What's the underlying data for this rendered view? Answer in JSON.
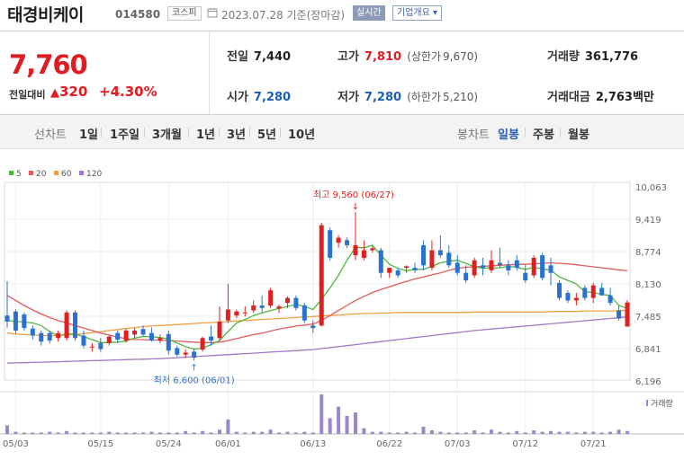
{
  "stock": {
    "name": "태경비케이",
    "code": "014580",
    "market": "코스피",
    "date": "2023.07.28 기준(장마감)",
    "realtime_label": "실시간",
    "overview_label": "기업개요",
    "price": "7,760",
    "change_label": "전일대비",
    "change": "320",
    "change_pct": "+4.30%"
  },
  "summary": {
    "prev_close": {
      "label": "전일",
      "value": "7,440"
    },
    "high": {
      "label": "고가",
      "value": "7,810",
      "limit_label": "(상한가",
      "limit_value": "9,670)"
    },
    "volume": {
      "label": "거래량",
      "value": "361,776"
    },
    "open": {
      "label": "시가",
      "value": "7,280"
    },
    "low": {
      "label": "저가",
      "value": "7,280",
      "limit_label": "(하한가",
      "limit_value": "5,210)"
    },
    "amount": {
      "label": "거래대금",
      "value": "2,763",
      "unit": "백만"
    }
  },
  "period_bar": {
    "line_label": "선차트",
    "line_periods": [
      "1일",
      "1주일",
      "3개월",
      "1년",
      "3년",
      "5년",
      "10년"
    ],
    "candle_label": "봉차트",
    "candle_periods": [
      "일봉",
      "주봉",
      "월봉"
    ],
    "candle_selected": "일봉"
  },
  "colors": {
    "up": "#e02020",
    "down": "#2a72d0",
    "ma5": "#4fb83c",
    "ma20": "#e55a5a",
    "ma60": "#f0a040",
    "ma120": "#a377c8",
    "volume": "#9a88c8"
  },
  "chart_data": {
    "type": "candlestick",
    "title": "",
    "ylim": [
      6196,
      10063
    ],
    "yticks": [
      "10,063",
      "9,419",
      "8,774",
      "8,130",
      "7,485",
      "6,841",
      "6,196"
    ],
    "xticks": [
      "05/03",
      "05/15",
      "05/24",
      "06/01",
      "06/13",
      "06/22",
      "07/03",
      "07/12",
      "07/21"
    ],
    "legend": [
      {
        "name": "5",
        "color": "#4fb83c"
      },
      {
        "name": "20",
        "color": "#e55a5a"
      },
      {
        "name": "60",
        "color": "#f0a040"
      },
      {
        "name": "120",
        "color": "#a377c8"
      }
    ],
    "volume_label": "거래량",
    "high_annotation": "최고 9,560 (06/27)",
    "low_annotation": "최저 6,600 (06/01)",
    "candles": [
      {
        "o": 7500,
        "h": 8180,
        "l": 7260,
        "c": 7380
      },
      {
        "o": 7580,
        "h": 7620,
        "l": 7140,
        "c": 7200
      },
      {
        "o": 7520,
        "h": 7560,
        "l": 7200,
        "c": 7250
      },
      {
        "o": 7240,
        "h": 7300,
        "l": 7020,
        "c": 7100
      },
      {
        "o": 7150,
        "h": 7200,
        "l": 6900,
        "c": 6980
      },
      {
        "o": 7150,
        "h": 7200,
        "l": 6940,
        "c": 7000
      },
      {
        "o": 7050,
        "h": 7200,
        "l": 6980,
        "c": 7150
      },
      {
        "o": 7050,
        "h": 7600,
        "l": 7000,
        "c": 7560
      },
      {
        "o": 7560,
        "h": 7600,
        "l": 7000,
        "c": 7050
      },
      {
        "o": 7100,
        "h": 7200,
        "l": 6850,
        "c": 6900
      },
      {
        "o": 6880,
        "h": 6950,
        "l": 6780,
        "c": 6880
      },
      {
        "o": 6950,
        "h": 7050,
        "l": 6780,
        "c": 6830
      },
      {
        "o": 6950,
        "h": 7100,
        "l": 6900,
        "c": 7080
      },
      {
        "o": 7150,
        "h": 7200,
        "l": 6950,
        "c": 7020
      },
      {
        "o": 7000,
        "h": 7230,
        "l": 6960,
        "c": 7200
      },
      {
        "o": 7120,
        "h": 7250,
        "l": 7050,
        "c": 7200
      },
      {
        "o": 7230,
        "h": 7300,
        "l": 7080,
        "c": 7120
      },
      {
        "o": 7150,
        "h": 7260,
        "l": 6980,
        "c": 7000
      },
      {
        "o": 7000,
        "h": 7120,
        "l": 6950,
        "c": 7050
      },
      {
        "o": 7130,
        "h": 7200,
        "l": 6720,
        "c": 6800
      },
      {
        "o": 6850,
        "h": 6900,
        "l": 6680,
        "c": 6720
      },
      {
        "o": 6720,
        "h": 6820,
        "l": 6650,
        "c": 6760
      },
      {
        "o": 6780,
        "h": 6850,
        "l": 6600,
        "c": 6660
      },
      {
        "o": 6820,
        "h": 7080,
        "l": 6780,
        "c": 7050
      },
      {
        "o": 7080,
        "h": 7300,
        "l": 6900,
        "c": 7000
      },
      {
        "o": 7050,
        "h": 7680,
        "l": 7000,
        "c": 7380
      },
      {
        "o": 7400,
        "h": 8130,
        "l": 7350,
        "c": 7620
      },
      {
        "o": 7500,
        "h": 7620,
        "l": 7450,
        "c": 7580
      },
      {
        "o": 7550,
        "h": 7680,
        "l": 7480,
        "c": 7560
      },
      {
        "o": 7600,
        "h": 7800,
        "l": 7550,
        "c": 7700
      },
      {
        "o": 7700,
        "h": 7900,
        "l": 7560,
        "c": 7650
      },
      {
        "o": 7700,
        "h": 8050,
        "l": 7650,
        "c": 8000
      },
      {
        "o": 7640,
        "h": 7720,
        "l": 7550,
        "c": 7680
      },
      {
        "o": 7750,
        "h": 7880,
        "l": 7650,
        "c": 7850
      },
      {
        "o": 7850,
        "h": 7900,
        "l": 7600,
        "c": 7650
      },
      {
        "o": 7700,
        "h": 7750,
        "l": 7350,
        "c": 7400
      },
      {
        "o": 7300,
        "h": 7400,
        "l": 7150,
        "c": 7250
      },
      {
        "o": 7300,
        "h": 9350,
        "l": 7280,
        "c": 9300
      },
      {
        "o": 9200,
        "h": 9250,
        "l": 8600,
        "c": 8650
      },
      {
        "o": 8950,
        "h": 9100,
        "l": 8850,
        "c": 9050
      },
      {
        "o": 9000,
        "h": 9050,
        "l": 8850,
        "c": 8900
      },
      {
        "o": 8700,
        "h": 9560,
        "l": 8600,
        "c": 8900
      },
      {
        "o": 8650,
        "h": 9000,
        "l": 8600,
        "c": 8800
      },
      {
        "o": 8800,
        "h": 8880,
        "l": 8750,
        "c": 8840
      },
      {
        "o": 8800,
        "h": 8850,
        "l": 8250,
        "c": 8350
      },
      {
        "o": 8350,
        "h": 8450,
        "l": 8250,
        "c": 8450
      },
      {
        "o": 8400,
        "h": 8450,
        "l": 8250,
        "c": 8300
      },
      {
        "o": 8450,
        "h": 8500,
        "l": 8350,
        "c": 8480
      },
      {
        "o": 8450,
        "h": 8550,
        "l": 8350,
        "c": 8400
      },
      {
        "o": 8900,
        "h": 9000,
        "l": 8400,
        "c": 8500
      },
      {
        "o": 8450,
        "h": 9000,
        "l": 8400,
        "c": 8800
      },
      {
        "o": 8800,
        "h": 9100,
        "l": 8650,
        "c": 8700
      },
      {
        "o": 8750,
        "h": 8900,
        "l": 8450,
        "c": 8500
      },
      {
        "o": 8550,
        "h": 8700,
        "l": 8300,
        "c": 8350
      },
      {
        "o": 8350,
        "h": 8500,
        "l": 8150,
        "c": 8200
      },
      {
        "o": 8300,
        "h": 8650,
        "l": 8250,
        "c": 8600
      },
      {
        "o": 8500,
        "h": 8650,
        "l": 8300,
        "c": 8450
      },
      {
        "o": 8400,
        "h": 8800,
        "l": 8350,
        "c": 8600
      },
      {
        "o": 8550,
        "h": 8850,
        "l": 8450,
        "c": 8500
      },
      {
        "o": 8500,
        "h": 8600,
        "l": 8300,
        "c": 8400
      },
      {
        "o": 8600,
        "h": 8700,
        "l": 8400,
        "c": 8450
      },
      {
        "o": 8350,
        "h": 8500,
        "l": 8150,
        "c": 8200
      },
      {
        "o": 8300,
        "h": 8700,
        "l": 8250,
        "c": 8650
      },
      {
        "o": 8700,
        "h": 8750,
        "l": 8200,
        "c": 8250
      },
      {
        "o": 8500,
        "h": 8650,
        "l": 8100,
        "c": 8350
      },
      {
        "o": 8150,
        "h": 8200,
        "l": 7800,
        "c": 7850
      },
      {
        "o": 7950,
        "h": 8000,
        "l": 7750,
        "c": 7800
      },
      {
        "o": 7800,
        "h": 7950,
        "l": 7700,
        "c": 7850
      },
      {
        "o": 8050,
        "h": 8100,
        "l": 7800,
        "c": 7850
      },
      {
        "o": 7850,
        "h": 8150,
        "l": 7750,
        "c": 8100
      },
      {
        "o": 8050,
        "h": 8150,
        "l": 7900,
        "c": 7900
      },
      {
        "o": 7900,
        "h": 8050,
        "l": 7700,
        "c": 7750
      },
      {
        "o": 7600,
        "h": 7700,
        "l": 7400,
        "c": 7440
      },
      {
        "o": 7280,
        "h": 7810,
        "l": 7280,
        "c": 7760
      }
    ],
    "volume": [
      12,
      3,
      2,
      2,
      2,
      3,
      2,
      4,
      2,
      2,
      2,
      2,
      3,
      2,
      2,
      2,
      2,
      3,
      2,
      2,
      2,
      4,
      2,
      4,
      2,
      6,
      20,
      3,
      2,
      3,
      3,
      6,
      2,
      3,
      2,
      3,
      2,
      55,
      22,
      38,
      25,
      30,
      8,
      3,
      3,
      2,
      2,
      3,
      2,
      10,
      5,
      3,
      2,
      2,
      2,
      5,
      2,
      6,
      3,
      2,
      4,
      2,
      5,
      3,
      4,
      3,
      3,
      2,
      3,
      3,
      2,
      3,
      6,
      4
    ],
    "ma5": [
      7400,
      7380,
      7370,
      7350,
      7300,
      7180,
      7090,
      7140,
      7130,
      7080,
      7020,
      6960,
      6960,
      6970,
      6990,
      7050,
      7080,
      7080,
      7060,
      7030,
      6950,
      6880,
      6830,
      6850,
      6920,
      7000,
      7180,
      7350,
      7420,
      7500,
      7550,
      7600,
      7640,
      7680,
      7720,
      7680,
      7620,
      7820,
      8050,
      8300,
      8600,
      8860,
      8850,
      8900,
      8700,
      8520,
      8440,
      8390,
      8420,
      8420,
      8480,
      8550,
      8580,
      8600,
      8540,
      8470,
      8440,
      8450,
      8450,
      8480,
      8460,
      8420,
      8460,
      8430,
      8400,
      8270,
      8200,
      8130,
      7970,
      7960,
      7920,
      7900,
      7700,
      7640
    ],
    "ma20": [
      7900,
      7800,
      7700,
      7610,
      7530,
      7460,
      7400,
      7350,
      7300,
      7250,
      7200,
      7150,
      7110,
      7070,
      7040,
      7020,
      7020,
      7010,
      7010,
      7000,
      6990,
      6980,
      6970,
      6960,
      6960,
      6970,
      7000,
      7040,
      7080,
      7120,
      7150,
      7190,
      7230,
      7260,
      7290,
      7310,
      7330,
      7400,
      7500,
      7600,
      7700,
      7800,
      7880,
      7960,
      8020,
      8070,
      8130,
      8180,
      8230,
      8270,
      8310,
      8350,
      8400,
      8440,
      8460,
      8470,
      8480,
      8490,
      8500,
      8510,
      8520,
      8520,
      8530,
      8540,
      8550,
      8540,
      8530,
      8510,
      8490,
      8470,
      8450,
      8430,
      8410,
      8390
    ],
    "ma60": [
      7150,
      7130,
      7120,
      7110,
      7100,
      7100,
      7100,
      7110,
      7120,
      7140,
      7160,
      7180,
      7200,
      7220,
      7240,
      7260,
      7280,
      7290,
      7300,
      7310,
      7320,
      7330,
      7340,
      7350,
      7360,
      7370,
      7380,
      7390,
      7400,
      7410,
      7420,
      7430,
      7440,
      7450,
      7460,
      7470,
      7480,
      7490,
      7500,
      7510,
      7520,
      7530,
      7540,
      7540,
      7550,
      7550,
      7560,
      7560,
      7560,
      7560,
      7560,
      7560,
      7560,
      7560,
      7560,
      7570,
      7570,
      7570,
      7570,
      7570,
      7570,
      7570,
      7570,
      7570,
      7580,
      7580,
      7580,
      7580,
      7590,
      7590,
      7590,
      7590,
      7600,
      7600
    ],
    "ma120": [
      6550,
      6555,
      6560,
      6565,
      6570,
      6575,
      6580,
      6585,
      6590,
      6595,
      6600,
      6605,
      6610,
      6615,
      6620,
      6625,
      6630,
      6635,
      6640,
      6650,
      6660,
      6670,
      6680,
      6690,
      6700,
      6710,
      6720,
      6730,
      6740,
      6750,
      6760,
      6770,
      6780,
      6790,
      6800,
      6810,
      6820,
      6840,
      6860,
      6880,
      6900,
      6920,
      6940,
      6960,
      6980,
      7000,
      7020,
      7040,
      7060,
      7080,
      7100,
      7120,
      7140,
      7160,
      7180,
      7200,
      7215,
      7230,
      7245,
      7260,
      7275,
      7290,
      7305,
      7320,
      7335,
      7350,
      7365,
      7380,
      7395,
      7410,
      7425,
      7440,
      7455,
      7470
    ]
  }
}
